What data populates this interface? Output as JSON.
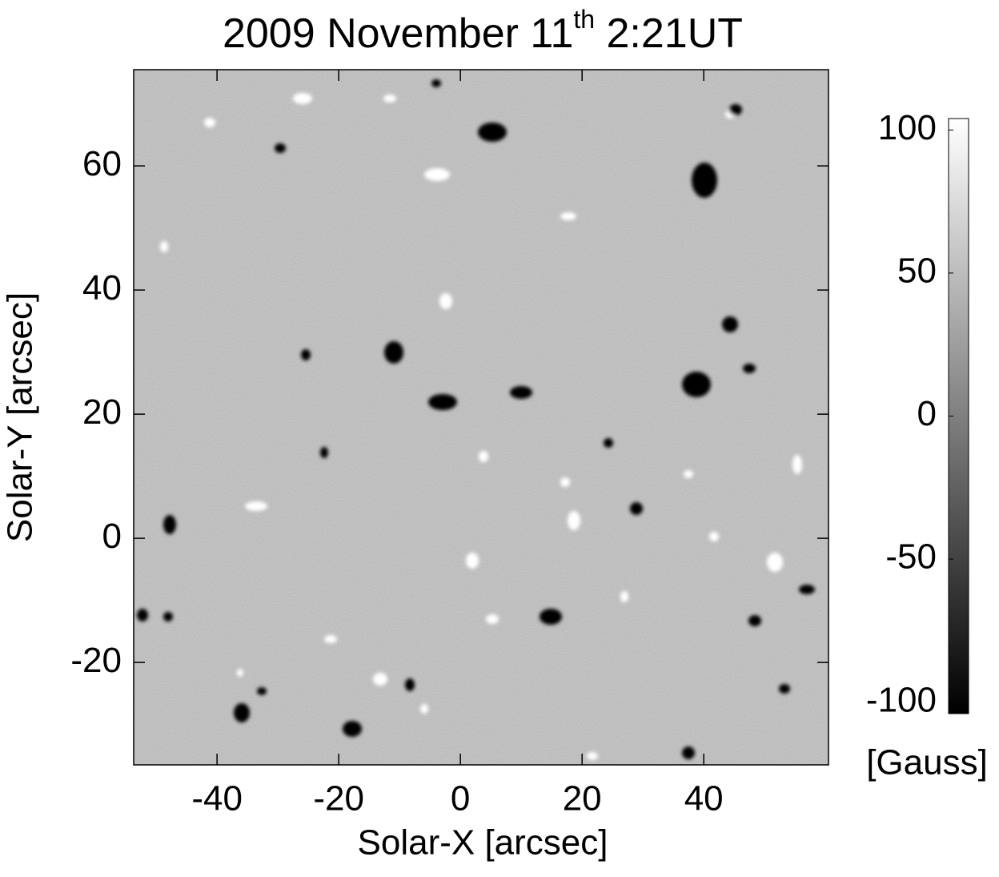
{
  "chart_data": {
    "type": "image",
    "title": {
      "main": "2009 November 11",
      "sup": "th",
      "rest": " 2:21UT"
    },
    "x_label": "Solar-X [arcsec]",
    "y_label": "Solar-Y [arcsec]",
    "xlim": [
      -53.7,
      60.5
    ],
    "ylim": [
      -36.5,
      75.5
    ],
    "xticks": [
      -40,
      -20,
      0,
      20,
      40
    ],
    "yticks": [
      -20,
      0,
      20,
      40,
      60
    ],
    "colorbar": {
      "label": "[Gauss]",
      "clim": [
        -104,
        104
      ],
      "ticks": [
        -100,
        -50,
        0,
        50,
        100
      ],
      "colors": [
        "#000000",
        "#ffffff"
      ]
    }
  }
}
